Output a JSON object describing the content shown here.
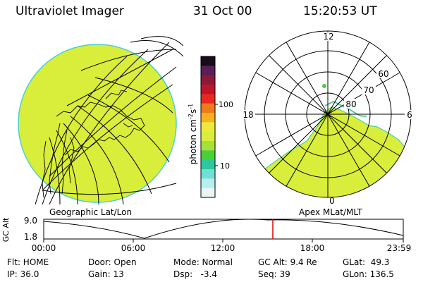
{
  "header": {
    "instrument": "Ultraviolet Imager",
    "date": "31 Oct 00",
    "time": "15:20:53 UT"
  },
  "colorbar": {
    "unit_label": "photon cm-2s-1",
    "ticks": [
      "100",
      "10"
    ],
    "colors": [
      "#1a0a1a",
      "#5a1e5a",
      "#8a1a3a",
      "#c0142a",
      "#e62a1e",
      "#f07a1a",
      "#f7b21e",
      "#f0e83a",
      "#d8ee3a",
      "#a8e03a",
      "#4ad03a",
      "#2ec7a0",
      "#6ee0d8",
      "#b8eeee",
      "#e8f6f6"
    ],
    "levels": [
      "100",
      "10"
    ]
  },
  "geo_panel": {
    "label": "Geographic Lat/Lon",
    "fill_color": "#d8ee3a"
  },
  "polar_panel": {
    "label": "Apex MLat/MLT",
    "mlt_labels": {
      "top": "12",
      "left": "18",
      "right": "6",
      "bottom": "0"
    },
    "lat_labels": [
      "60",
      "70",
      "80"
    ]
  },
  "altitude_plot": {
    "ylabel": "GC Alt",
    "yticks": [
      "9.0",
      "1.8"
    ],
    "xticks": [
      "00:00",
      "06:00",
      "12:00",
      "18:00",
      "23:59"
    ],
    "marker_time": "15:20",
    "marker_color": "#e00000"
  },
  "status": {
    "flt": "Flt: HOME",
    "ip": "IP: 36.0",
    "door": "Door: Open",
    "gain": "Gain: 13",
    "mode": "Mode: Normal",
    "dsp": "Dsp:   -3.4",
    "gcalt": "GC Alt: 9.4 Re",
    "seq": "Seq: 39",
    "glat": "GLat:  49.3",
    "glon": "GLon: 136.5"
  }
}
